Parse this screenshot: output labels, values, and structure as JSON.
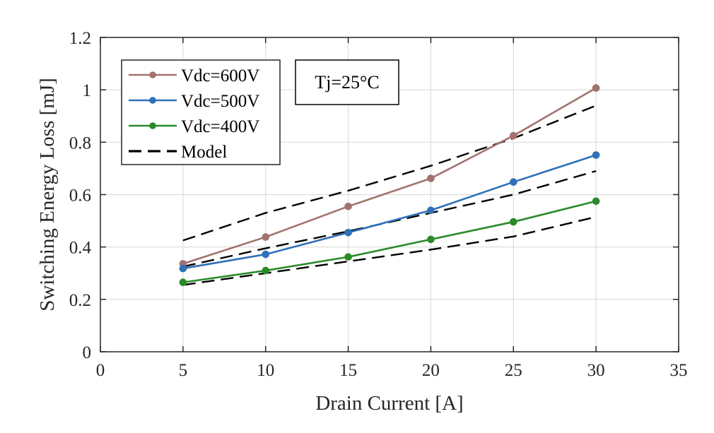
{
  "chart_data": {
    "type": "line",
    "title": "",
    "xlabel": "Drain Current [A]",
    "ylabel": "Switching Energy Loss [mJ]",
    "xlim": [
      0,
      35
    ],
    "ylim": [
      0,
      1.2
    ],
    "xticks": [
      0,
      5,
      10,
      15,
      20,
      25,
      30,
      35
    ],
    "yticks": [
      0,
      0.2,
      0.4,
      0.6,
      0.8,
      1,
      1.2
    ],
    "ytick_labels": [
      "0",
      "0.2",
      "0.4",
      "0.6",
      "0.8",
      "1",
      "1.2"
    ],
    "grid": true,
    "legend_position": "top-left",
    "annotation": "Tj=25°C",
    "series": [
      {
        "name": "Vdc=600V",
        "color": "#a2726f",
        "style": "solid-markers",
        "x": [
          5,
          10,
          15,
          20,
          25,
          30
        ],
        "y": [
          0.336,
          0.438,
          0.555,
          0.662,
          0.825,
          1.007
        ]
      },
      {
        "name": "Vdc=500V",
        "color": "#2f70b8",
        "style": "solid-markers",
        "x": [
          5,
          10,
          15,
          20,
          25,
          30
        ],
        "y": [
          0.318,
          0.372,
          0.455,
          0.54,
          0.648,
          0.751
        ]
      },
      {
        "name": "Vdc=400V",
        "color": "#2a8a2a",
        "style": "solid-markers",
        "x": [
          5,
          10,
          15,
          20,
          25,
          30
        ],
        "y": [
          0.265,
          0.31,
          0.362,
          0.429,
          0.496,
          0.575
        ]
      },
      {
        "name": "Model",
        "color": "#000000",
        "style": "dashed",
        "lines": [
          {
            "x": [
              5,
              10,
              15,
              20,
              25,
              30
            ],
            "y": [
              0.425,
              0.53,
              0.615,
              0.71,
              0.815,
              0.94
            ]
          },
          {
            "x": [
              5,
              10,
              15,
              20,
              25,
              30
            ],
            "y": [
              0.325,
              0.395,
              0.46,
              0.53,
              0.6,
              0.69
            ]
          },
          {
            "x": [
              5,
              10,
              15,
              20,
              25,
              30
            ],
            "y": [
              0.255,
              0.3,
              0.345,
              0.39,
              0.44,
              0.515
            ]
          }
        ]
      }
    ]
  }
}
